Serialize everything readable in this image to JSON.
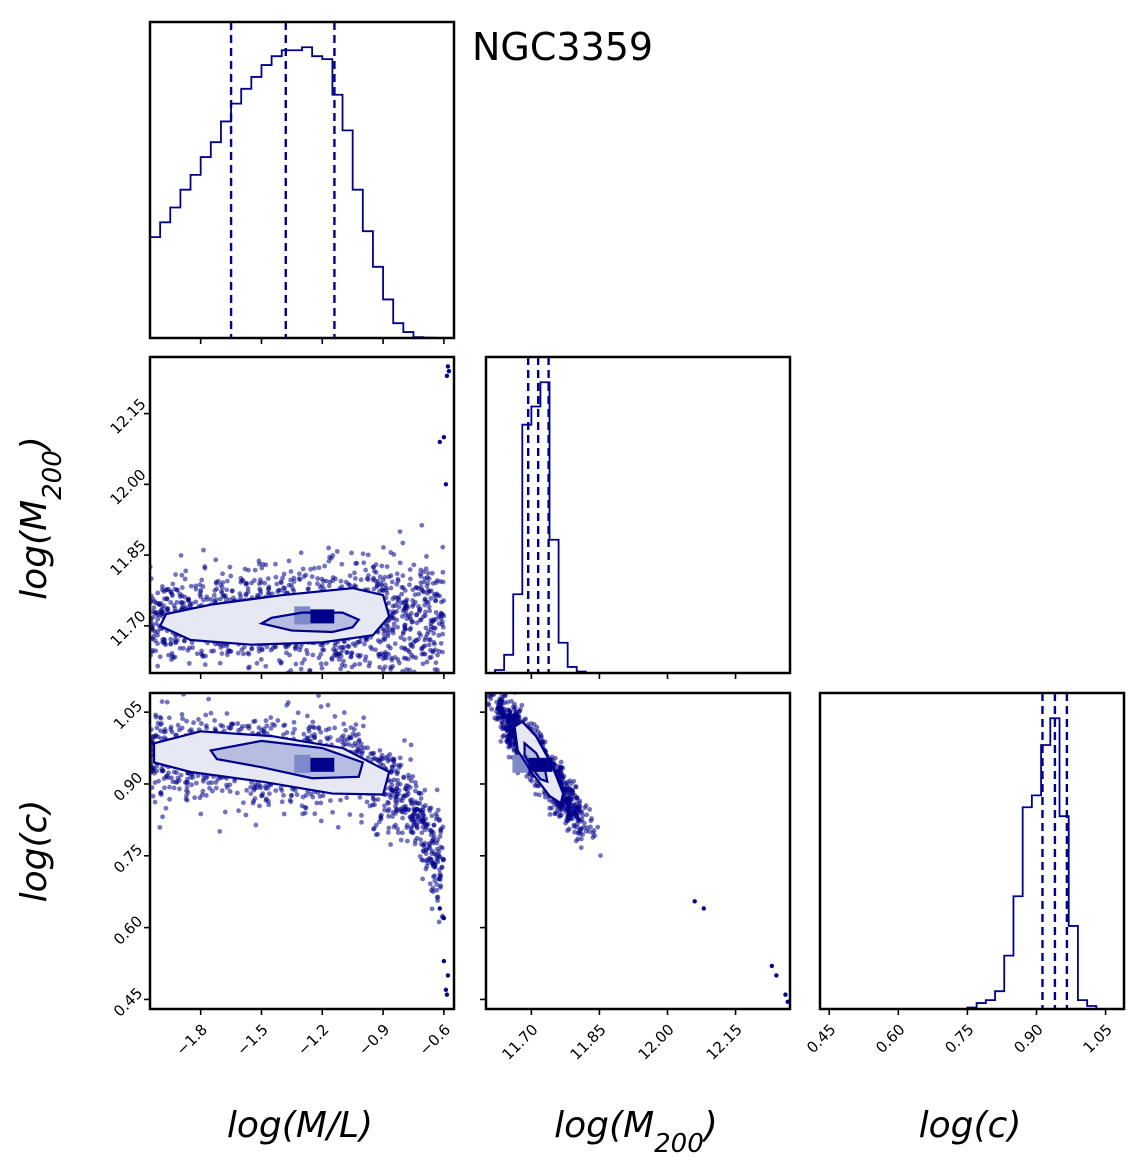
{
  "title": "NGC3359",
  "colors": {
    "primary": "#00008b",
    "fill_light": "#e6e8f4",
    "fill_mid": "#b7bde0",
    "fill_dark": "#7f88c8"
  },
  "chart_data": {
    "type": "corner",
    "title": "NGC3359",
    "parameters": [
      {
        "key": "ml",
        "label": "log(M/L)",
        "range": [
          -2.05,
          -0.55
        ],
        "ticks": [
          -1.8,
          -1.5,
          -1.2,
          -0.9,
          -0.6
        ],
        "tick_labels": [
          "−1.8",
          "−1.5",
          "−1.2",
          "−0.9",
          "−0.6"
        ]
      },
      {
        "key": "m200",
        "label_base": "log(M",
        "label_sub": "200",
        "label_end": ")",
        "range": [
          11.6,
          12.27
        ],
        "ticks": [
          11.7,
          11.85,
          12.0,
          12.15
        ],
        "tick_labels": [
          "11.70",
          "11.85",
          "12.00",
          "12.15"
        ]
      },
      {
        "key": "c",
        "label": "log(c)",
        "range": [
          0.43,
          1.09
        ],
        "ticks": [
          0.45,
          0.6,
          0.75,
          0.9,
          1.05
        ],
        "tick_labels": [
          "0.45",
          "0.60",
          "0.75",
          "0.90",
          "1.05"
        ]
      }
    ],
    "histograms": [
      {
        "param": "ml",
        "bin_edges": [
          -2.05,
          -2.0,
          -1.95,
          -1.9,
          -1.85,
          -1.8,
          -1.75,
          -1.7,
          -1.65,
          -1.6,
          -1.55,
          -1.5,
          -1.45,
          -1.4,
          -1.35,
          -1.3,
          -1.25,
          -1.2,
          -1.15,
          -1.1,
          -1.05,
          -1.0,
          -0.95,
          -0.9,
          -0.85,
          -0.8,
          -0.75,
          -0.7,
          -0.65,
          -0.6
        ],
        "counts": [
          0.34,
          0.39,
          0.44,
          0.5,
          0.55,
          0.61,
          0.66,
          0.73,
          0.79,
          0.84,
          0.88,
          0.92,
          0.95,
          0.97,
          0.97,
          0.98,
          0.95,
          0.94,
          0.82,
          0.7,
          0.5,
          0.36,
          0.24,
          0.13,
          0.05,
          0.02,
          0.003,
          0.001,
          0.0005
        ],
        "quantiles": [
          -1.65,
          -1.38,
          -1.14
        ]
      },
      {
        "param": "m200",
        "bin_edges": [
          11.6,
          11.62,
          11.64,
          11.66,
          11.68,
          11.7,
          11.72,
          11.74,
          11.76,
          11.78,
          11.8,
          11.82,
          11.84,
          11.86,
          11.88,
          11.9,
          11.92
        ],
        "counts": [
          0.0,
          0.01,
          0.06,
          0.26,
          0.82,
          0.88,
          0.96,
          0.44,
          0.1,
          0.02,
          0.005,
          0.0,
          0.0,
          0.0,
          0.0,
          0.0
        ],
        "quantiles": [
          11.693,
          11.715,
          11.738
        ]
      },
      {
        "param": "c",
        "bin_edges": [
          0.75,
          0.77,
          0.79,
          0.81,
          0.83,
          0.85,
          0.87,
          0.89,
          0.91,
          0.93,
          0.95,
          0.97,
          0.99,
          1.01,
          1.03,
          1.05,
          1.07
        ],
        "counts": [
          0.005,
          0.02,
          0.03,
          0.06,
          0.18,
          0.38,
          0.68,
          0.72,
          0.89,
          0.98,
          0.65,
          0.28,
          0.03,
          0.01,
          0.0,
          0.0
        ],
        "quantiles": [
          0.913,
          0.94,
          0.966
        ]
      }
    ],
    "panels_2d": [
      {
        "x": "ml",
        "y": "m200",
        "peak": [
          -1.2,
          11.72
        ],
        "contours": [
          {
            "level": "inner",
            "points": [
              [
                -1.5,
                11.705
              ],
              [
                -1.35,
                11.69
              ],
              [
                -1.15,
                11.687
              ],
              [
                -1.05,
                11.697
              ],
              [
                -1.02,
                11.713
              ],
              [
                -1.1,
                11.728
              ],
              [
                -1.3,
                11.728
              ],
              [
                -1.45,
                11.717
              ]
            ]
          },
          {
            "level": "outer",
            "points": [
              [
                -2.0,
                11.7
              ],
              [
                -1.85,
                11.67
              ],
              [
                -1.55,
                11.66
              ],
              [
                -1.2,
                11.665
              ],
              [
                -0.95,
                11.68
              ],
              [
                -0.87,
                11.72
              ],
              [
                -0.9,
                11.765
              ],
              [
                -1.05,
                11.78
              ],
              [
                -1.4,
                11.765
              ],
              [
                -1.75,
                11.745
              ],
              [
                -1.97,
                11.725
              ]
            ]
          }
        ]
      },
      {
        "x": "ml",
        "y": "c",
        "peak": [
          -1.2,
          0.94
        ],
        "contours": [
          {
            "level": "inner",
            "points": [
              [
                -1.75,
                0.97
              ],
              [
                -1.5,
                0.99
              ],
              [
                -1.2,
                0.975
              ],
              [
                -1.0,
                0.945
              ],
              [
                -1.02,
                0.915
              ],
              [
                -1.25,
                0.912
              ],
              [
                -1.5,
                0.935
              ],
              [
                -1.72,
                0.952
              ]
            ]
          },
          {
            "level": "outer",
            "points": [
              [
                -2.03,
                0.985
              ],
              [
                -1.8,
                1.01
              ],
              [
                -1.45,
                1.0
              ],
              [
                -1.1,
                0.975
              ],
              [
                -0.87,
                0.925
              ],
              [
                -0.9,
                0.878
              ],
              [
                -1.15,
                0.88
              ],
              [
                -1.5,
                0.905
              ],
              [
                -1.85,
                0.925
              ],
              [
                -2.03,
                0.945
              ]
            ]
          }
        ]
      },
      {
        "x": "m200",
        "y": "c",
        "peak": [
          11.72,
          0.94
        ],
        "contours": [
          {
            "level": "inner",
            "points": [
              [
                11.685,
                0.985
              ],
              [
                11.71,
                0.965
              ],
              [
                11.73,
                0.93
              ],
              [
                11.735,
                0.905
              ],
              [
                11.72,
                0.91
              ],
              [
                11.7,
                0.935
              ],
              [
                11.685,
                0.96
              ]
            ]
          },
          {
            "level": "outer",
            "points": [
              [
                11.663,
                1.02
              ],
              [
                11.68,
                1.03
              ],
              [
                11.71,
                1.0
              ],
              [
                11.745,
                0.94
              ],
              [
                11.77,
                0.88
              ],
              [
                11.765,
                0.86
              ],
              [
                11.74,
                0.875
              ],
              [
                11.7,
                0.925
              ],
              [
                11.67,
                0.97
              ]
            ]
          }
        ]
      }
    ]
  }
}
